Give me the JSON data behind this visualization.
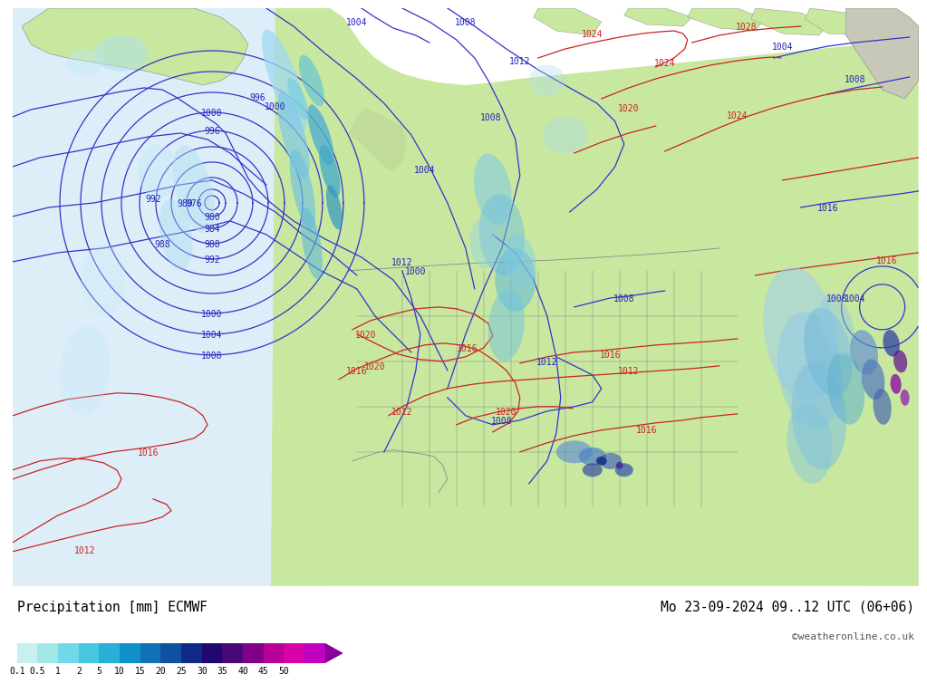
{
  "title_left": "Precipitation [mm] ECMWF",
  "title_right": "Mo 23-09-2024 09..12 UTC (06+06)",
  "credit": "©weatheronline.co.uk",
  "colorbar_labels": [
    "0.1",
    "0.5",
    "1",
    "2",
    "5",
    "10",
    "15",
    "20",
    "25",
    "30",
    "35",
    "40",
    "45",
    "50"
  ],
  "colorbar_colors": [
    "#c8f0f0",
    "#a0e8e8",
    "#70d8e8",
    "#48c8e0",
    "#28b0d8",
    "#1090c8",
    "#1070b8",
    "#1050a0",
    "#102888",
    "#200870",
    "#480878",
    "#800088",
    "#b80098",
    "#d800a8",
    "#c000c0"
  ],
  "bg_color": "#ffffff",
  "ocean_color": "#e8f4f8",
  "land_color": "#c8e8a0",
  "mountain_color": "#b8c890",
  "canada_color": "#c0e098",
  "fig_width": 10.0,
  "fig_height": 7.33,
  "colorbar_arrow_color": "#880099",
  "font_color_blue": "#2222bb",
  "font_color_red": "#cc2222",
  "font_color_gray": "#666666"
}
